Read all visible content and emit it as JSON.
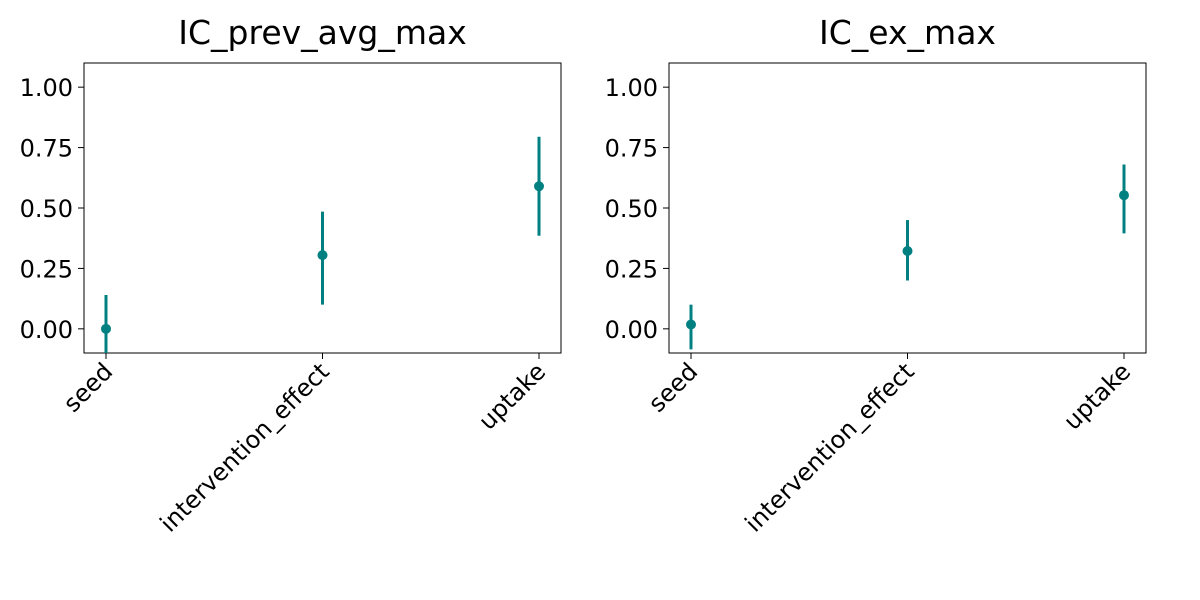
{
  "colors": {
    "series": "#008080",
    "axes": "#000000",
    "background": "#ffffff"
  },
  "chart_data": [
    {
      "type": "scatter",
      "title": "IC_prev_avg_max",
      "categories": [
        "seed",
        "intervention_effect",
        "uptake"
      ],
      "values": [
        0.0,
        0.305,
        0.59
      ],
      "lower": [
        -0.1,
        0.1,
        0.385
      ],
      "upper": [
        0.14,
        0.485,
        0.795
      ],
      "ylim": [
        -0.1,
        1.1
      ],
      "yticks": [
        0.0,
        0.25,
        0.5,
        0.75,
        1.0
      ],
      "ytick_labels": [
        "0.00",
        "0.25",
        "0.50",
        "0.75",
        "1.00"
      ],
      "xlabel": "",
      "ylabel": "",
      "grid": false
    },
    {
      "type": "scatter",
      "title": "IC_ex_max",
      "categories": [
        "seed",
        "intervention_effect",
        "uptake"
      ],
      "values": [
        0.018,
        0.322,
        0.553
      ],
      "lower": [
        -0.085,
        0.2,
        0.395
      ],
      "upper": [
        0.1,
        0.45,
        0.68
      ],
      "ylim": [
        -0.1,
        1.1
      ],
      "yticks": [
        0.0,
        0.25,
        0.5,
        0.75,
        1.0
      ],
      "ytick_labels": [
        "0.00",
        "0.25",
        "0.50",
        "0.75",
        "1.00"
      ],
      "xlabel": "",
      "ylabel": "",
      "grid": false
    }
  ]
}
